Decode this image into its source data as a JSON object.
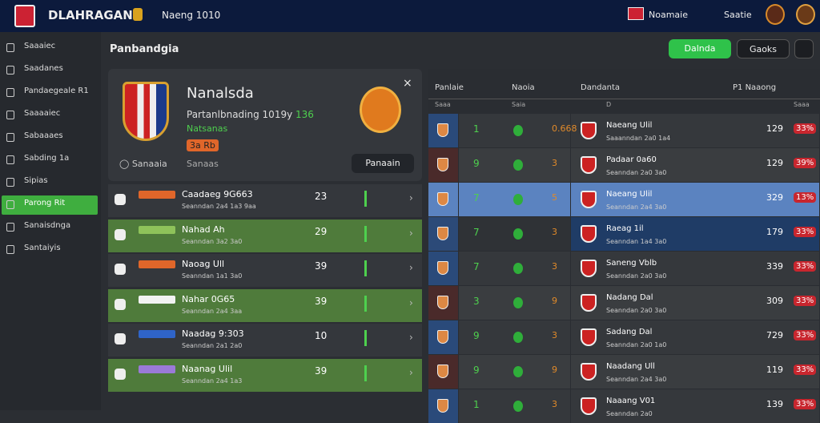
{
  "topbar": {
    "brand": "DLAHRAGAN",
    "tab": "Naeng 1010",
    "user_a": "Noamaie",
    "user_b": "Saatie"
  },
  "sidebar": {
    "items": [
      "Saaaiec",
      "Saadanes",
      "Pandaegeale R1",
      "Saaaaiec",
      "Sabaaaes",
      "Sabding 1a",
      "Sipias",
      "Parong Rit",
      "Sanaisdnga",
      "Santaiyis"
    ],
    "active": 7
  },
  "main": {
    "title": "Panbandgia",
    "button_primary": "Dalnda",
    "button_secondary": "Gaoks"
  },
  "card": {
    "title": "Nanalsda",
    "subtitle": "Partanlbnading 1019y",
    "subtitle_value": "136",
    "tag": "Natsanas",
    "badge": "3a Rb",
    "link_a": "Sanaaia",
    "link_b": "Sanaas",
    "action": "Panaain"
  },
  "list": [
    {
      "name": "Caadaeg 9G663",
      "sub": "Seanndan 2a4 1a3 9aa",
      "value": "23",
      "tag_color": "#e0662a"
    },
    {
      "name": "Nahad Ah",
      "sub": "Seanndan 3a2 3a0",
      "value": "29",
      "tag_color": "#8ec25a"
    },
    {
      "name": "Naoag Ull",
      "sub": "Seanndan 1a1 3a0",
      "value": "39",
      "tag_color": "#e0662a"
    },
    {
      "name": "Nahar 0G65",
      "sub": "Seanndan 2a4 3aa",
      "value": "39",
      "tag_color": "#f2f2f2"
    },
    {
      "name": "Naadag 9:303",
      "sub": "Seanndan 2a1 2a0",
      "value": "10",
      "tag_color": "#2f64c8"
    },
    {
      "name": "Naanag Ulil",
      "sub": "Seanndan 2a4 1a3",
      "value": "39",
      "tag_color": "#9b7ad8"
    }
  ],
  "table": {
    "headers": [
      "Panlaie",
      "Naoia",
      "Dandanta",
      "P1 Naaong"
    ],
    "subheaders": [
      "Saaa",
      "Saia",
      "D",
      "Saaa"
    ],
    "rows": [
      {
        "a": "1",
        "b": "0.668",
        "team": "Naeang Ulil",
        "sub": "Saaanndan 2a0 1a4",
        "score": "129",
        "badge": "33%"
      },
      {
        "a": "9",
        "b": "3",
        "team": "Padaar 0a60",
        "sub": "Seanndan 2a0 3a0",
        "score": "129",
        "badge": "39%"
      },
      {
        "a": "7",
        "b": "5",
        "team": "Naeang Ulil",
        "sub": "Seanndan 2a4 3a0",
        "score": "329",
        "badge": "13%"
      },
      {
        "a": "7",
        "b": "3",
        "team": "Raeag 1il",
        "sub": "Seanndan 1a4 3a0",
        "score": "179",
        "badge": "33%"
      },
      {
        "a": "7",
        "b": "3",
        "team": "Saneng Vblb",
        "sub": "Seanndan 2a0 3a0",
        "score": "339",
        "badge": "33%"
      },
      {
        "a": "3",
        "b": "9",
        "team": "Nadang Dal",
        "sub": "Seanndan 2a0 3a0",
        "score": "309",
        "badge": "33%"
      },
      {
        "a": "9",
        "b": "3",
        "team": "Sadang Dal",
        "sub": "Seanndan 2a0 1a0",
        "score": "729",
        "badge": "33%"
      },
      {
        "a": "9",
        "b": "9",
        "team": "Naadang Ull",
        "sub": "Seanndan 2a4 3a0",
        "score": "119",
        "badge": "33%"
      },
      {
        "a": "1",
        "b": "3",
        "team": "Naaang V01",
        "sub": "Seanndan 2a0",
        "score": "139",
        "badge": "33%"
      }
    ]
  }
}
